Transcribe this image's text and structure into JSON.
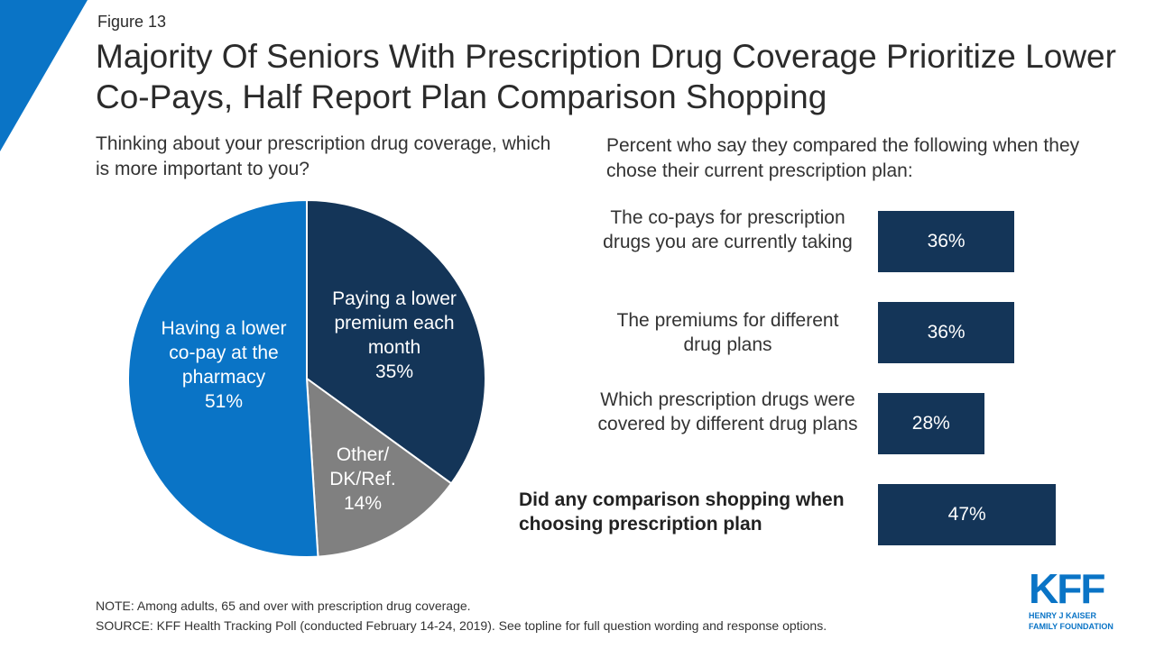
{
  "header": {
    "figure": "Figure 13",
    "title": "Majority Of Seniors With Prescription Drug Coverage Prioritize Lower Co-Pays, Half Report Plan Comparison Shopping"
  },
  "colors": {
    "accent": "#0a74c6",
    "navy": "#143558",
    "gray": "#808080"
  },
  "chart_data": [
    {
      "type": "pie",
      "title": "Thinking about your prescription drug coverage, which is more important to you?",
      "slices": [
        {
          "label": "Paying a lower premium each month",
          "value": 35,
          "value_label": "35%",
          "color": "#143558"
        },
        {
          "label": "Other/ DK/Ref.",
          "value": 14,
          "value_label": "14%",
          "color": "#808080"
        },
        {
          "label": "Having a lower co-pay at the pharmacy",
          "value": 51,
          "value_label": "51%",
          "color": "#0a74c6"
        }
      ]
    },
    {
      "type": "bar",
      "orientation": "horizontal",
      "title": "Percent who say they compared the following when they chose their current prescription plan:",
      "categories": [
        "The co-pays for prescription drugs you are currently taking",
        "The premiums for different drug plans",
        "Which prescription drugs were covered by different drug plans",
        "Did any comparison shopping when choosing prescription plan"
      ],
      "values": [
        36,
        36,
        28,
        47
      ],
      "value_labels": [
        "36%",
        "36%",
        "28%",
        "47%"
      ],
      "xlim": [
        0,
        100
      ]
    }
  ],
  "notes": {
    "note": "NOTE: Among adults, 65 and over with prescription drug coverage.",
    "source": "SOURCE: KFF Health Tracking Poll (conducted February 14-24, 2019). See topline for full question wording and response options."
  },
  "logo": {
    "main": "KFF",
    "line1": "HENRY J KAISER",
    "line2": "FAMILY FOUNDATION"
  }
}
